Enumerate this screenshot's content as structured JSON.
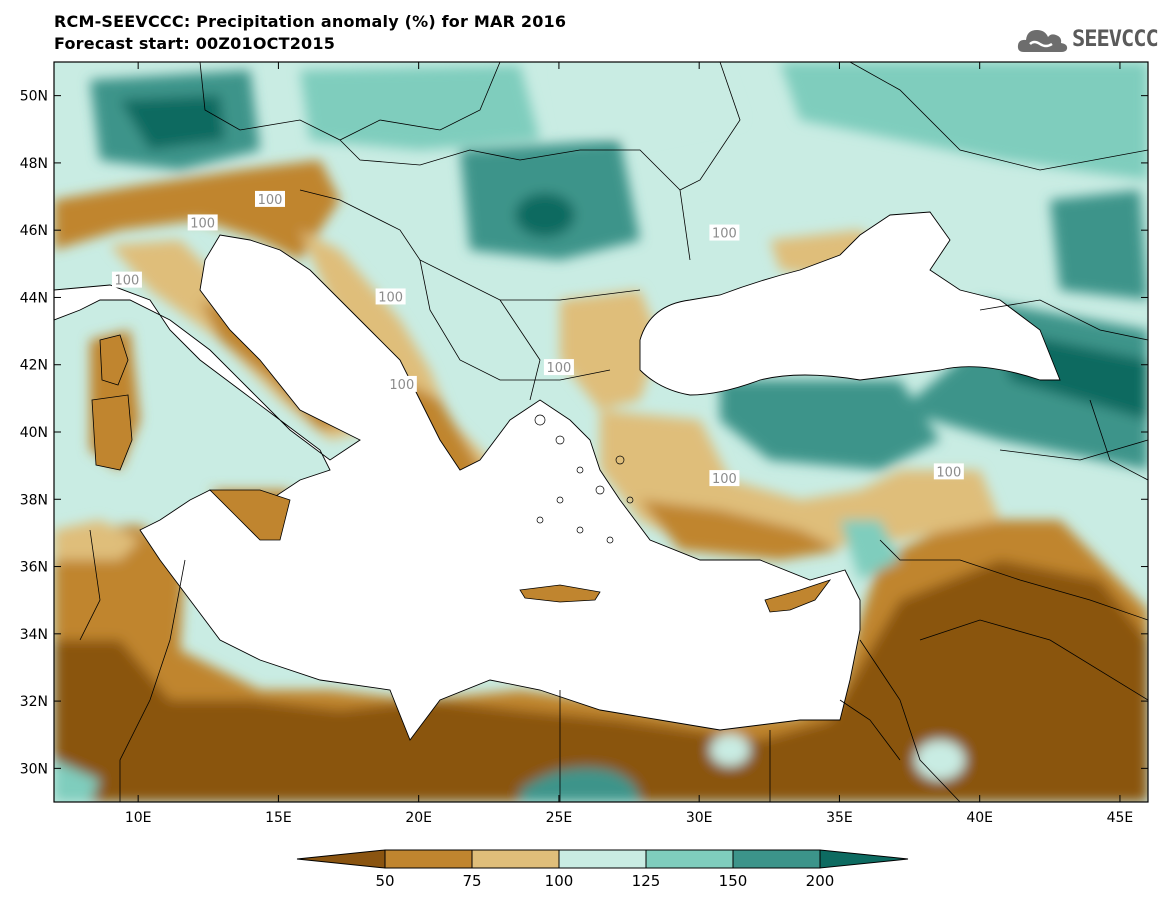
{
  "title_line1": "RCM-SEEVCCC: Precipitation anomaly (%) for MAR 2016",
  "title_line2": "Forecast start: 00Z01OCT2015",
  "logo": {
    "text": "SEEVCCC",
    "icon": "cloud-logo-icon"
  },
  "map": {
    "lon_range": [
      7,
      46
    ],
    "lat_range": [
      29,
      51
    ],
    "lon_ticks": [
      "10E",
      "15E",
      "20E",
      "25E",
      "30E",
      "35E",
      "40E",
      "45E"
    ],
    "lon_tick_values": [
      10,
      15,
      20,
      25,
      30,
      35,
      40,
      45
    ],
    "lat_ticks": [
      "50N",
      "48N",
      "46N",
      "44N",
      "42N",
      "40N",
      "38N",
      "36N",
      "34N",
      "32N",
      "30N"
    ],
    "lat_tick_values": [
      50,
      48,
      46,
      44,
      42,
      40,
      38,
      36,
      34,
      32,
      30
    ],
    "contour_label": "100",
    "contour_labels_at": [
      {
        "lon": 14.7,
        "lat": 46.9
      },
      {
        "lon": 12.3,
        "lat": 46.2
      },
      {
        "lon": 9.6,
        "lat": 44.5
      },
      {
        "lon": 19.0,
        "lat": 44.0
      },
      {
        "lon": 19.4,
        "lat": 41.4
      },
      {
        "lon": 25.0,
        "lat": 41.9
      },
      {
        "lon": 30.9,
        "lat": 45.9
      },
      {
        "lon": 30.9,
        "lat": 38.6
      },
      {
        "lon": 38.9,
        "lat": 38.8
      }
    ]
  },
  "colorbar": {
    "levels": [
      "50",
      "75",
      "100",
      "125",
      "150",
      "200"
    ],
    "colors": [
      "#8a5410",
      "#c0852f",
      "#dfbe7a",
      "#c9ece3",
      "#7fcdbd",
      "#3c948a",
      "#0d6b61"
    ]
  },
  "colors": {
    "sea": "#ffffff",
    "very_dry": "#8a5410",
    "dry": "#c0852f",
    "slightly_dry": "#dfbe7a",
    "slightly_wet": "#c9ece3",
    "wet": "#7fcdbd",
    "very_wet": "#3c948a",
    "extreme_wet": "#0d6b61"
  }
}
